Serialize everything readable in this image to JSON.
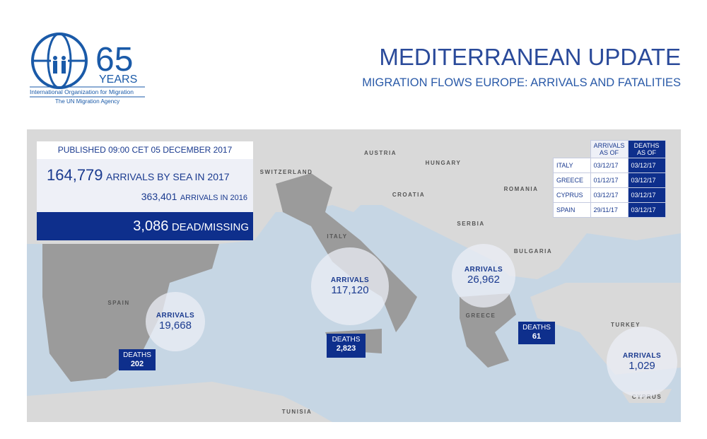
{
  "header": {
    "logo_number": "65",
    "logo_years": "YEARS",
    "logo_org": "International Organization for Migration",
    "logo_agency": "The UN Migration Agency",
    "title": "MEDITERRANEAN UPDATE",
    "subtitle": "MIGRATION FLOWS EUROPE: ARRIVALS AND FATALITIES"
  },
  "summary": {
    "published": "PUBLISHED 09:00 CET 05 DECEMBER 2017",
    "arrivals_2017": "164,779",
    "arrivals_2017_label": "ARRIVALS BY SEA IN 2017",
    "arrivals_2016": "363,401",
    "arrivals_2016_label": "ARRIVALS IN 2016",
    "dead": "3,086",
    "dead_label": "DEAD/MISSING"
  },
  "table": {
    "headers": [
      "ARRIVALS AS OF",
      "DEATHS AS OF"
    ],
    "rows": [
      [
        "ITALY",
        "03/12/17",
        "03/12/17"
      ],
      [
        "GREECE",
        "01/12/17",
        "03/12/17"
      ],
      [
        "CYPRUS",
        "03/12/17",
        "03/12/17"
      ],
      [
        "SPAIN",
        "29/11/17",
        "03/12/17"
      ]
    ]
  },
  "map": {
    "countries": [
      "AUSTRIA",
      "SWITZERLAND",
      "HUNGARY",
      "ROMANIA",
      "CROATIA",
      "SERBIA",
      "BULGARIA",
      "ITALY",
      "SPAIN",
      "GREECE",
      "TURKEY",
      "TUNISIA",
      "CYPRUS"
    ],
    "arrivals": [
      {
        "label": "ARRIVALS",
        "value": "19,668"
      },
      {
        "label": "ARRIVALS",
        "value": "117,120"
      },
      {
        "label": "ARRIVALS",
        "value": "26,962"
      },
      {
        "label": "ARRIVALS",
        "value": "1,029"
      }
    ],
    "deaths": [
      {
        "label": "DEATHS",
        "value": "202"
      },
      {
        "label": "DEATHS",
        "value": "2,823"
      },
      {
        "label": "DEATHS",
        "value": "61"
      }
    ]
  }
}
